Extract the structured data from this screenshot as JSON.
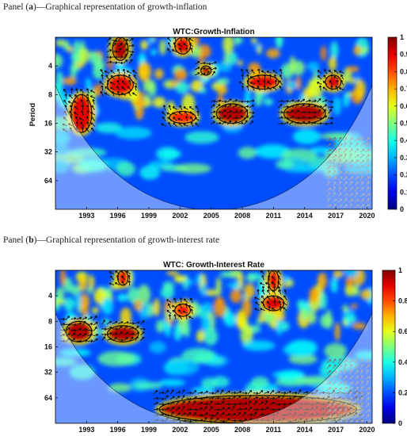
{
  "panels": [
    {
      "caption_prefix": "Panel (",
      "caption_letter": "a",
      "caption_suffix": ")—Graphical representation of growth-inflation"
    },
    {
      "caption_prefix": "Panel (",
      "caption_letter": "b",
      "caption_suffix": ")—Graphical representation of growth-interest rate"
    }
  ],
  "chart_data": [
    {
      "type": "heatmap",
      "subtype": "wavelet coherence",
      "title": "WTC:Growth-Inflation",
      "ylabel": "Period",
      "xlabel": "",
      "x_ticks": [
        "1993",
        "1996",
        "1999",
        "2002",
        "2005",
        "2008",
        "2011",
        "2014",
        "2017",
        "2020"
      ],
      "y_ticks": [
        "4",
        "8",
        "16",
        "32",
        "64"
      ],
      "y_scale": "log2",
      "colorbar_ticks": [
        "0",
        "0.1",
        "0.2",
        "0.3",
        "0.4",
        "0.5",
        "0.6",
        "0.7",
        "0.8",
        "0.9",
        "1"
      ],
      "colorbar_range": [
        0,
        1
      ],
      "colormap": "jet",
      "high_coherence_regions": [
        {
          "x": [
            1991.5,
            1993.5
          ],
          "period": [
            8,
            20
          ],
          "value": 0.9
        },
        {
          "x": [
            1995,
            1997.5
          ],
          "period": [
            5,
            8
          ],
          "value": 0.9
        },
        {
          "x": [
            2001,
            2003.5
          ],
          "period": [
            12,
            16
          ],
          "value": 0.85
        },
        {
          "x": [
            2005.5,
            2008.5
          ],
          "period": [
            10,
            16
          ],
          "value": 0.95
        },
        {
          "x": [
            2008.5,
            2011.5
          ],
          "period": [
            5,
            7
          ],
          "value": 0.9
        },
        {
          "x": [
            2012,
            2016
          ],
          "period": [
            10,
            16
          ],
          "value": 0.95
        },
        {
          "x": [
            2016,
            2017.5
          ],
          "period": [
            5,
            7
          ],
          "value": 0.9
        },
        {
          "x": [
            2004,
            2005
          ],
          "period": [
            4,
            5
          ],
          "value": 0.95
        },
        {
          "x": [
            1995.5,
            1997
          ],
          "period": [
            2,
            3.5
          ],
          "value": 0.95
        },
        {
          "x": [
            2001.5,
            2003
          ],
          "period": [
            2,
            3
          ],
          "value": 0.9
        }
      ]
    },
    {
      "type": "heatmap",
      "subtype": "wavelet coherence",
      "title": "WTC: Growth-Interest Rate",
      "ylabel": "",
      "xlabel": "",
      "x_ticks": [
        "1993",
        "1996",
        "1999",
        "2002",
        "2005",
        "2008",
        "2011",
        "2014",
        "2017",
        "2020"
      ],
      "y_ticks": [
        "4",
        "8",
        "16",
        "32",
        "64"
      ],
      "y_scale": "log2",
      "colorbar_ticks": [
        "0",
        "0.2",
        "0.4",
        "0.6",
        "0.8",
        "1"
      ],
      "colorbar_range": [
        0,
        1
      ],
      "colormap": "jet",
      "high_coherence_regions": [
        {
          "x": [
            1991,
            1993.5
          ],
          "period": [
            8,
            14
          ],
          "value": 0.95
        },
        {
          "x": [
            1995,
            1998
          ],
          "period": [
            9,
            14
          ],
          "value": 0.95
        },
        {
          "x": [
            2000,
            2019
          ],
          "period": [
            60,
            128
          ],
          "value": 0.95
        },
        {
          "x": [
            2010,
            2012
          ],
          "period": [
            4,
            6
          ],
          "value": 0.9
        },
        {
          "x": [
            2001.5,
            2003
          ],
          "period": [
            5,
            7
          ],
          "value": 0.85
        },
        {
          "x": [
            2010.5,
            2011.5
          ],
          "period": [
            2,
            3.5
          ],
          "value": 0.9
        },
        {
          "x": [
            1996,
            1997
          ],
          "period": [
            2,
            3
          ],
          "value": 0.9
        }
      ]
    }
  ]
}
